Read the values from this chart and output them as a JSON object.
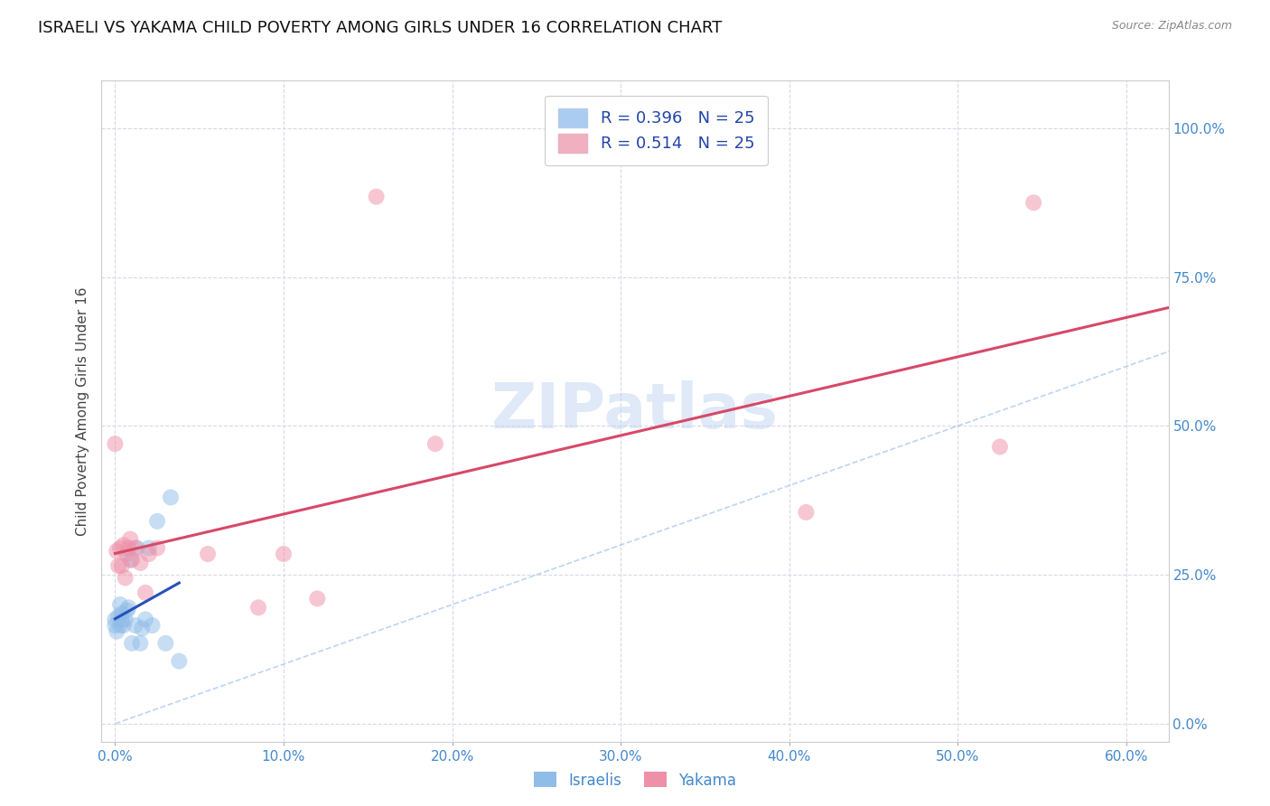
{
  "title": "ISRAELI VS YAKAMA CHILD POVERTY AMONG GIRLS UNDER 16 CORRELATION CHART",
  "source": "Source: ZipAtlas.com",
  "ylabel": "Child Poverty Among Girls Under 16",
  "xlabel_ticks": [
    "0.0%",
    "10.0%",
    "20.0%",
    "30.0%",
    "40.0%",
    "50.0%",
    "60.0%"
  ],
  "xlabel_vals": [
    0.0,
    0.1,
    0.2,
    0.3,
    0.4,
    0.5,
    0.6
  ],
  "ylabel_ticks": [
    "100.0%",
    "75.0%",
    "50.0%",
    "25.0%",
    "0.0%"
  ],
  "ylabel_vals": [
    1.0,
    0.75,
    0.5,
    0.25,
    0.0
  ],
  "xlim": [
    -0.008,
    0.625
  ],
  "ylim": [
    -0.03,
    1.08
  ],
  "watermark": "ZIPatlas",
  "legend": [
    {
      "label": "R = 0.396   N = 25",
      "color": "#aaccf0"
    },
    {
      "label": "R = 0.514   N = 25",
      "color": "#f0b0c0"
    }
  ],
  "israelis_x": [
    0.0,
    0.0,
    0.001,
    0.002,
    0.003,
    0.003,
    0.004,
    0.004,
    0.005,
    0.006,
    0.007,
    0.008,
    0.009,
    0.01,
    0.012,
    0.013,
    0.015,
    0.016,
    0.018,
    0.02,
    0.022,
    0.025,
    0.03,
    0.033,
    0.038
  ],
  "israelis_y": [
    0.165,
    0.175,
    0.155,
    0.18,
    0.165,
    0.2,
    0.175,
    0.185,
    0.165,
    0.175,
    0.19,
    0.195,
    0.275,
    0.135,
    0.165,
    0.295,
    0.135,
    0.16,
    0.175,
    0.295,
    0.165,
    0.34,
    0.135,
    0.38,
    0.105
  ],
  "yakama_x": [
    0.0,
    0.001,
    0.002,
    0.003,
    0.004,
    0.005,
    0.006,
    0.007,
    0.008,
    0.009,
    0.01,
    0.012,
    0.015,
    0.018,
    0.02,
    0.025,
    0.055,
    0.085,
    0.1,
    0.12,
    0.155,
    0.19,
    0.41,
    0.525,
    0.545
  ],
  "yakama_y": [
    0.47,
    0.29,
    0.265,
    0.295,
    0.265,
    0.3,
    0.245,
    0.285,
    0.295,
    0.31,
    0.275,
    0.295,
    0.27,
    0.22,
    0.285,
    0.295,
    0.285,
    0.195,
    0.285,
    0.21,
    0.885,
    0.47,
    0.355,
    0.465,
    0.875
  ],
  "israeli_color": "#90bce8",
  "yakama_color": "#ee90a8",
  "israeli_line_color": "#2850b8",
  "yakama_line_color": "#d84868",
  "diagonal_color": "#90b8e8",
  "bg_color": "#ffffff",
  "grid_color": "#d8d8e8",
  "title_fontsize": 13,
  "axis_label_fontsize": 11,
  "tick_fontsize": 11,
  "marker_size": 13,
  "marker_alpha": 0.5,
  "r_israelis": 0.396,
  "r_yakama": 0.514,
  "n_israelis": 25,
  "n_yakama": 25
}
